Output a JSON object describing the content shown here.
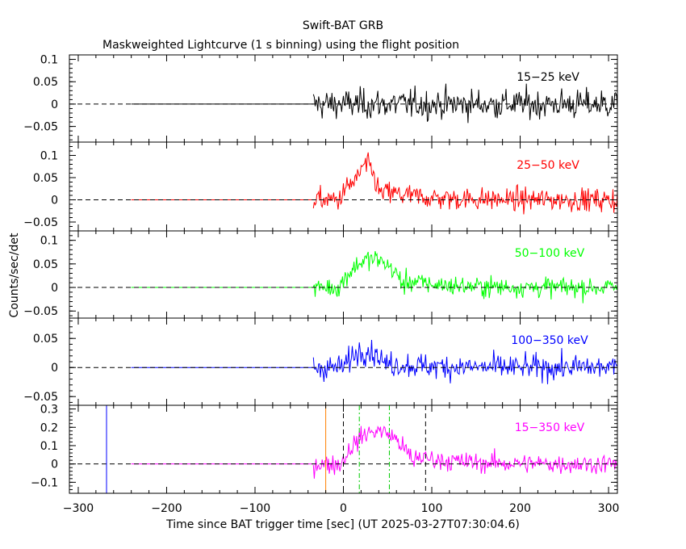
{
  "chart_data": {
    "type": "line",
    "title": "Swift-BAT GRB",
    "subtitle": "Maskweighted Lightcurve (1 s binning) using the flight position",
    "xlabel": "Time since BAT trigger time [sec] (UT 2025-03-27T07:30:04.6)",
    "ylabel": "Counts/sec/det",
    "xlim": [
      -310,
      310
    ],
    "xticks": [
      -300,
      -200,
      -100,
      0,
      100,
      200,
      300
    ],
    "xtick_labels": [
      "−300",
      "−200",
      "−100",
      "0",
      "100",
      "200",
      "300"
    ],
    "bin_seconds": 1,
    "flat_segment_range": [
      -240,
      -34
    ],
    "data_start": -34,
    "panels": [
      {
        "band": "15−25 keV",
        "color": "#000000",
        "ylim": [
          -0.085,
          0.11
        ],
        "yticks": [
          0.1,
          0.05,
          0,
          -0.05
        ],
        "ytick_labels": [
          "0.1",
          "0.05",
          "0",
          "−0.05"
        ],
        "noise_sigma": 0.028,
        "burst": []
      },
      {
        "band": "25−50 keV",
        "color": "#ff0000",
        "ylim": [
          -0.07,
          0.13
        ],
        "yticks": [
          0.1,
          0.05,
          0,
          -0.05
        ],
        "ytick_labels": [
          "0.1",
          "0.05",
          "0",
          "−0.05"
        ],
        "noise_sigma": 0.022,
        "burst": [
          {
            "t0": -5,
            "t1": 45,
            "amp": 0.045
          },
          {
            "t0": 15,
            "t1": 40,
            "amp": 0.035
          }
        ]
      },
      {
        "band": "50−100 keV",
        "color": "#00ff00",
        "ylim": [
          -0.065,
          0.12
        ],
        "yticks": [
          0.1,
          0.05,
          0,
          -0.05
        ],
        "ytick_labels": [
          "0.1",
          "0.05",
          "0",
          "−0.05"
        ],
        "noise_sigma": 0.018,
        "burst": [
          {
            "t0": -5,
            "t1": 70,
            "amp": 0.06
          }
        ]
      },
      {
        "band": "100−350 keV",
        "color": "#0000ff",
        "ylim": [
          -0.065,
          0.085
        ],
        "yticks": [
          0.05,
          0,
          -0.05
        ],
        "ytick_labels": [
          "0.05",
          "0",
          "−0.05"
        ],
        "noise_sigma": 0.018,
        "burst": [
          {
            "t0": 0,
            "t1": 50,
            "amp": 0.03
          }
        ]
      },
      {
        "band": "15−350 keV",
        "color": "#ff00ff",
        "ylim": [
          -0.16,
          0.32
        ],
        "yticks": [
          0.3,
          0.2,
          0.1,
          0,
          -0.1
        ],
        "ytick_labels": [
          "0.3",
          "0.2",
          "0.1",
          "0",
          "−0.1"
        ],
        "noise_sigma": 0.045,
        "burst": [
          {
            "t0": -3,
            "t1": 80,
            "amp": 0.18
          }
        ]
      }
    ],
    "markers": [
      {
        "t": -268,
        "color": "#0000ff",
        "style": "solid"
      },
      {
        "t": -20,
        "color": "#ff8000",
        "style": "solid"
      },
      {
        "t": 0,
        "color": "#000000",
        "style": "dashed"
      },
      {
        "t": 18,
        "color": "#00cc00",
        "style": "dashdot"
      },
      {
        "t": 52,
        "color": "#00cc00",
        "style": "dashdot"
      },
      {
        "t": 93,
        "color": "#000000",
        "style": "dashed"
      }
    ]
  }
}
